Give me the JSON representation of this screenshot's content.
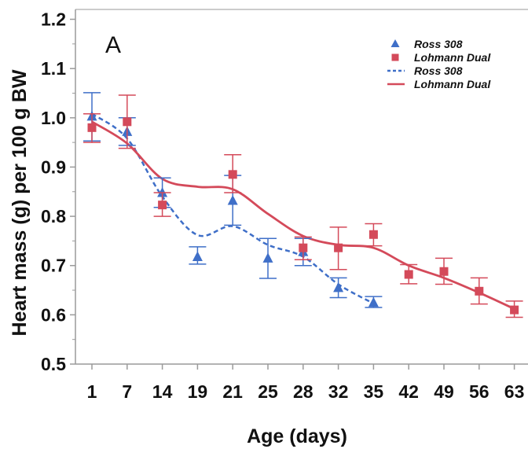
{
  "chart_data": {
    "type": "scatter",
    "panel_label": "A",
    "xlabel": "Age (days)",
    "ylabel": "Heart mass (g) per 100 g BW",
    "categories": [
      "1",
      "7",
      "14",
      "19",
      "21",
      "25",
      "28",
      "32",
      "35",
      "42",
      "49",
      "56",
      "63"
    ],
    "ylim": [
      0.5,
      1.22
    ],
    "yticks": [
      "0.5",
      "0.6",
      "0.7",
      "0.8",
      "0.9",
      "1.0",
      "1.1",
      "1.2"
    ],
    "grid": false,
    "legend_position": "top-right",
    "colors": {
      "ross": "#3f6fc8",
      "lohmann": "#d44a5a",
      "axis": "#9a9a9a"
    },
    "legend": [
      {
        "label": "Ross 308",
        "marker": "triangle",
        "color": "#3f6fc8"
      },
      {
        "label": "Lohmann Dual",
        "marker": "square",
        "color": "#d44a5a"
      },
      {
        "label": "Ross 308",
        "line": "dashed",
        "color": "#3f6fc8"
      },
      {
        "label": "Lohmann Dual",
        "line": "solid",
        "color": "#d44a5a"
      }
    ],
    "series": [
      {
        "name": "Ross 308",
        "marker": "triangle",
        "points": [
          {
            "x": "1",
            "y": 1.003,
            "lo": 0.953,
            "hi": 1.051
          },
          {
            "x": "7",
            "y": 0.972,
            "lo": 0.944,
            "hi": 1.0
          },
          {
            "x": "14",
            "y": 0.848,
            "lo": 0.818,
            "hi": 0.878
          },
          {
            "x": "19",
            "y": 0.718,
            "lo": 0.703,
            "hi": 0.738
          },
          {
            "x": "21",
            "y": 0.832,
            "lo": 0.782,
            "hi": 0.883
          },
          {
            "x": "25",
            "y": 0.715,
            "lo": 0.674,
            "hi": 0.755
          },
          {
            "x": "28",
            "y": 0.728,
            "lo": 0.7,
            "hi": 0.755
          },
          {
            "x": "32",
            "y": 0.655,
            "lo": 0.635,
            "hi": 0.675
          },
          {
            "x": "35",
            "y": 0.625,
            "lo": 0.615,
            "hi": 0.637
          }
        ],
        "fit": [
          [
            "1",
            1.008
          ],
          [
            "7",
            0.958
          ],
          [
            "14",
            0.84
          ],
          [
            "19",
            0.762
          ],
          [
            "21",
            0.78
          ],
          [
            "25",
            0.742
          ],
          [
            "28",
            0.718
          ],
          [
            "32",
            0.662
          ],
          [
            "35",
            0.623
          ]
        ]
      },
      {
        "name": "Lohmann Dual",
        "marker": "square",
        "points": [
          {
            "x": "1",
            "y": 0.98,
            "lo": 0.95,
            "hi": 1.008
          },
          {
            "x": "7",
            "y": 0.992,
            "lo": 0.938,
            "hi": 1.046
          },
          {
            "x": "14",
            "y": 0.823,
            "lo": 0.8,
            "hi": 0.848
          },
          {
            "x": "21",
            "y": 0.885,
            "lo": 0.848,
            "hi": 0.925
          },
          {
            "x": "28",
            "y": 0.736,
            "lo": 0.712,
            "hi": 0.758
          },
          {
            "x": "32",
            "y": 0.736,
            "lo": 0.692,
            "hi": 0.778
          },
          {
            "x": "35",
            "y": 0.763,
            "lo": 0.74,
            "hi": 0.785
          },
          {
            "x": "42",
            "y": 0.682,
            "lo": 0.663,
            "hi": 0.702
          },
          {
            "x": "49",
            "y": 0.688,
            "lo": 0.662,
            "hi": 0.715
          },
          {
            "x": "56",
            "y": 0.648,
            "lo": 0.622,
            "hi": 0.675
          },
          {
            "x": "63",
            "y": 0.61,
            "lo": 0.595,
            "hi": 0.628
          }
        ],
        "fit": [
          [
            "1",
            0.992
          ],
          [
            "7",
            0.948
          ],
          [
            "14",
            0.876
          ],
          [
            "19",
            0.86
          ],
          [
            "21",
            0.855
          ],
          [
            "25",
            0.805
          ],
          [
            "28",
            0.76
          ],
          [
            "32",
            0.742
          ],
          [
            "35",
            0.736
          ],
          [
            "42",
            0.7
          ],
          [
            "49",
            0.675
          ],
          [
            "56",
            0.645
          ],
          [
            "63",
            0.612
          ]
        ]
      }
    ]
  }
}
